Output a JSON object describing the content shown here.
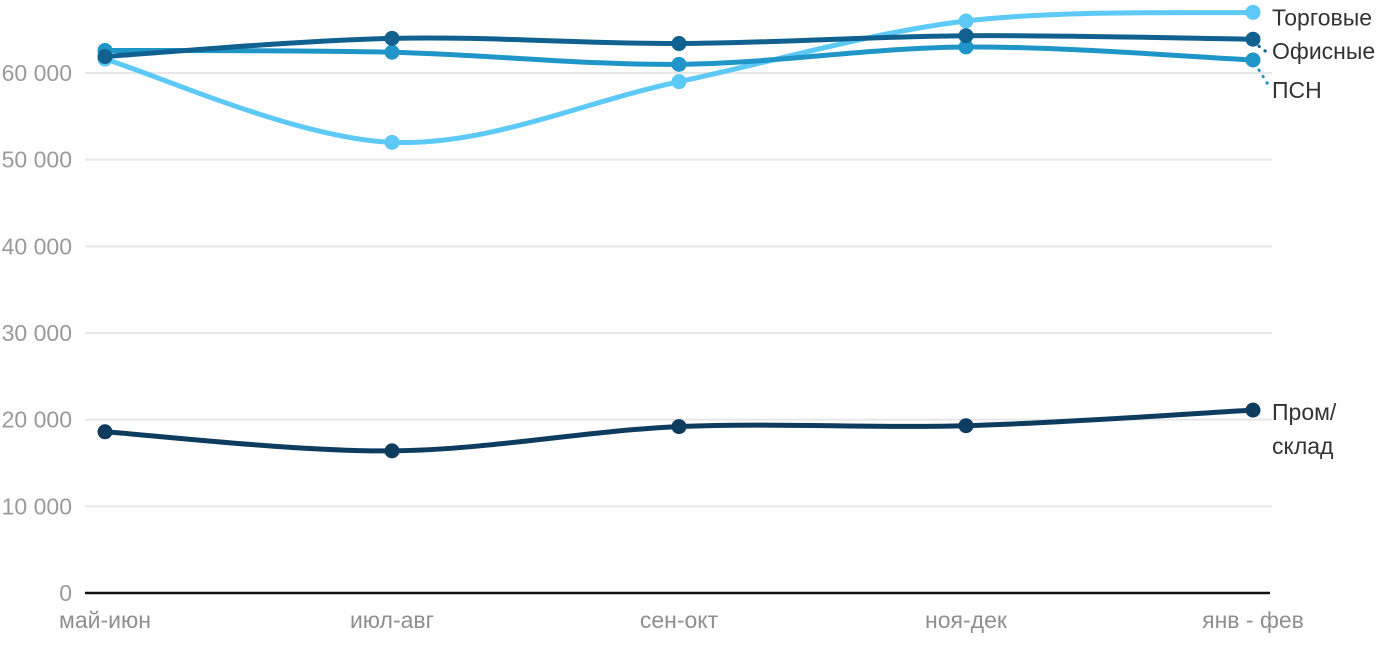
{
  "chart_data": {
    "type": "line",
    "title": "",
    "xlabel": "",
    "ylabel": "",
    "categories": [
      "май-июн",
      "июл-авг",
      "сен-окт",
      "ноя-дек",
      "янв - фев"
    ],
    "series": [
      {
        "name": "Торговые",
        "color": "#5cc9f6",
        "values": [
          61600,
          52000,
          59000,
          66000,
          67000
        ],
        "label_lines": [
          "Торговые"
        ]
      },
      {
        "name": "Офисные",
        "color": "#106190",
        "values": [
          61900,
          64000,
          63400,
          64300,
          63900
        ],
        "label_lines": [
          "Офисные"
        ]
      },
      {
        "name": "ПСН",
        "color": "#2096c8",
        "values": [
          62600,
          62400,
          61000,
          63000,
          61500
        ],
        "label_lines": [
          "ПСН"
        ]
      },
      {
        "name": "Пром/склад",
        "color": "#0d3c5f",
        "values": [
          18600,
          16400,
          19200,
          19300,
          21100
        ],
        "label_lines": [
          "Пром/",
          "склад"
        ]
      }
    ],
    "yticks": {
      "values": [
        0,
        10000,
        20000,
        30000,
        40000,
        50000,
        60000
      ],
      "labels": [
        "0",
        "10 000",
        "20 000",
        "30 000",
        "40 000",
        "50 000",
        "60 000"
      ]
    },
    "ylim": [
      0,
      67600
    ],
    "grid": "horizontal",
    "legend_position": "right-of-line-ends",
    "colors": {
      "grid": "#e7e7e7",
      "axis": "#111111",
      "y_tick_label": "#9a9a9a",
      "x_tick_label": "#8f8f8f",
      "legend_label": "#333333",
      "background": "#ffffff"
    }
  }
}
